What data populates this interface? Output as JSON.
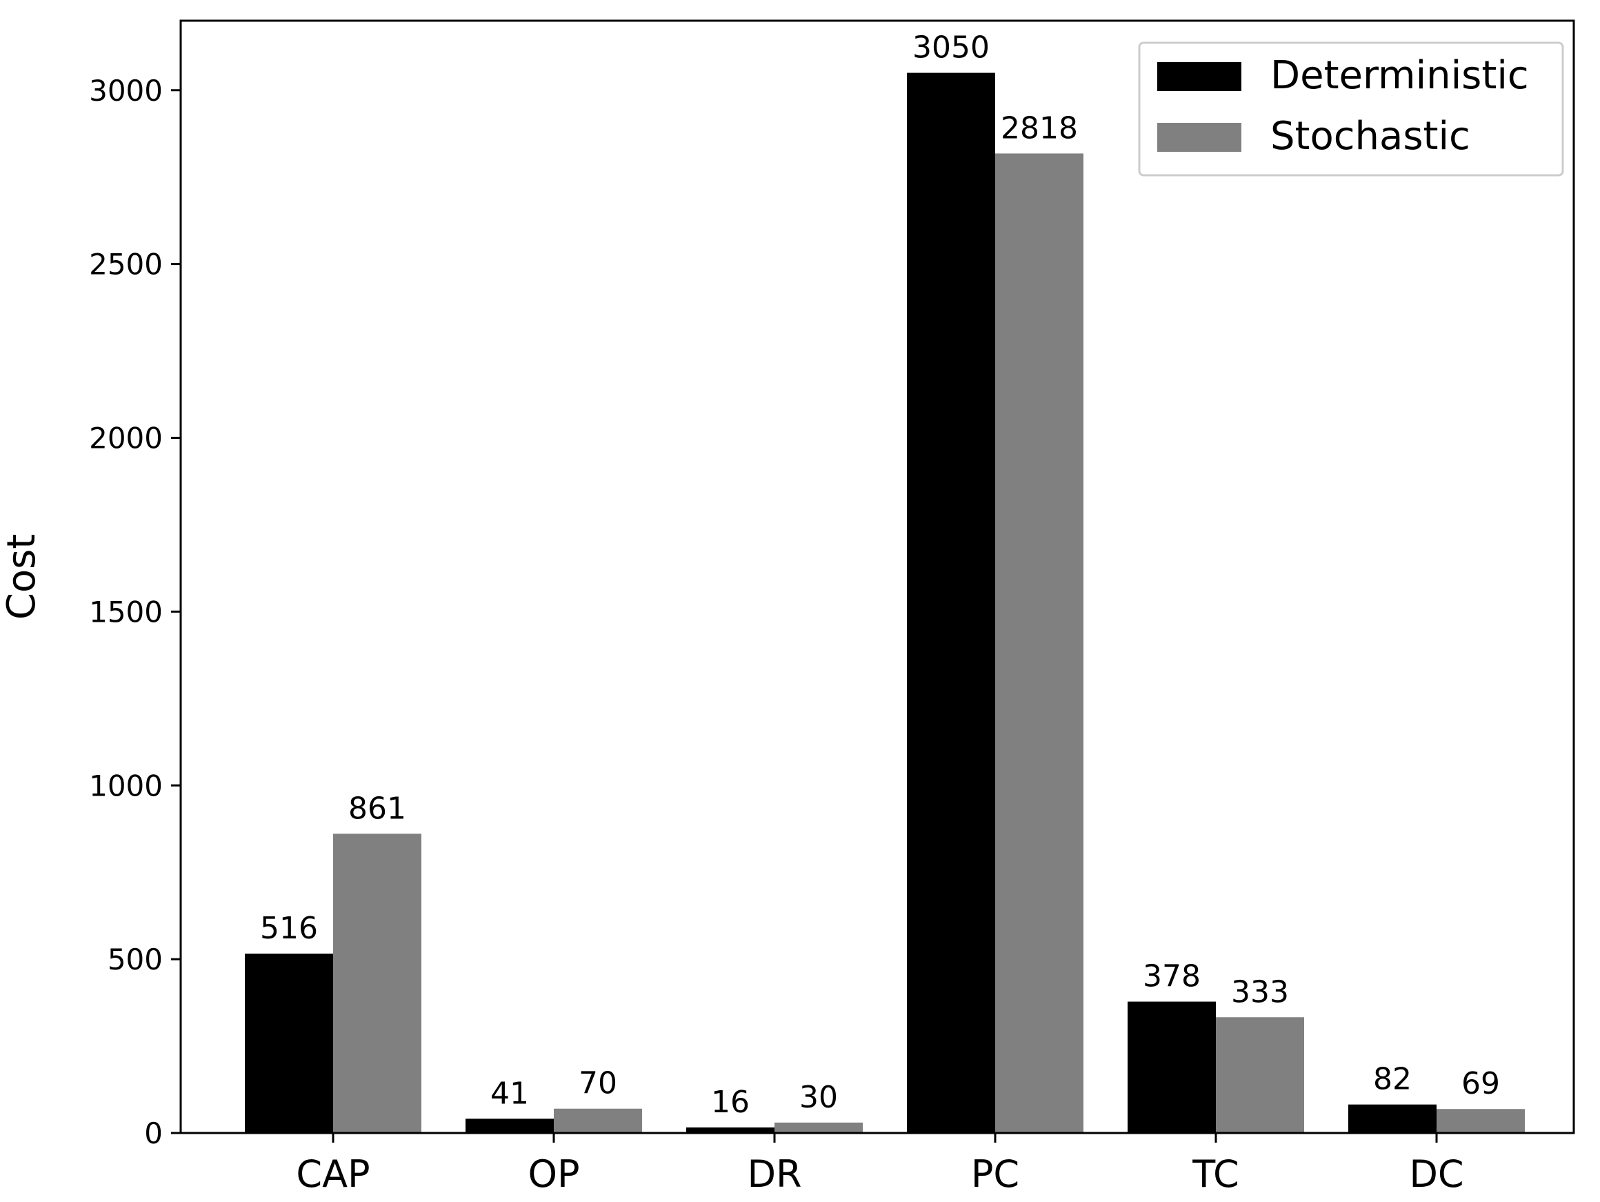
{
  "chart_data": {
    "type": "bar",
    "title": "",
    "xlabel": "",
    "ylabel": "Cost",
    "categories": [
      "CAP",
      "OP",
      "DR",
      "PC",
      "TC",
      "DC"
    ],
    "series": [
      {
        "name": "Deterministic",
        "color": "#000000",
        "values": [
          516,
          41,
          16,
          3050,
          378,
          82
        ]
      },
      {
        "name": "Stochastic",
        "color": "#808080",
        "values": [
          861,
          70,
          30,
          2818,
          333,
          69
        ]
      }
    ],
    "ylim": [
      0,
      3200
    ],
    "yticks": [
      0,
      500,
      1000,
      1500,
      2000,
      2500,
      3000
    ],
    "grid": false,
    "legend": "top-right",
    "data_labels": true
  }
}
